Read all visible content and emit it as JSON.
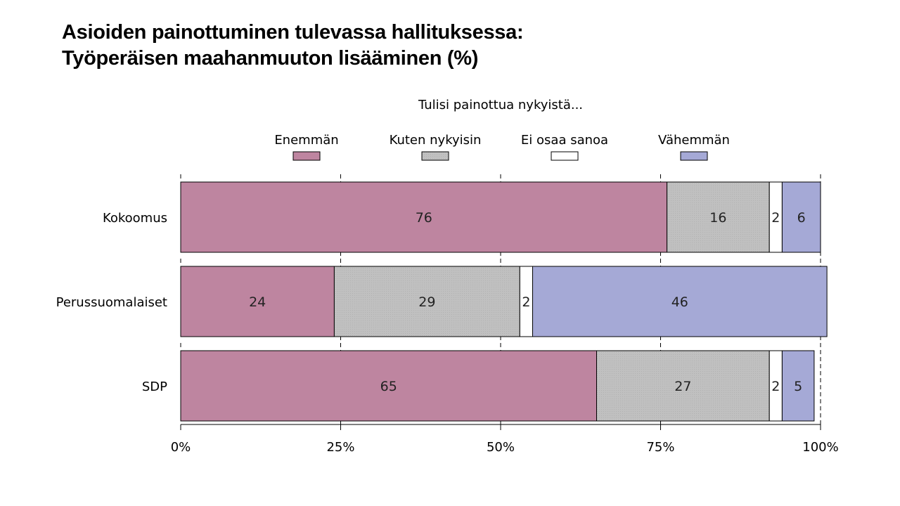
{
  "title_line1": "Asioiden painottuminen tulevassa hallituksessa:",
  "title_line2": "Työperäisen maahanmuuton lisääminen (%)",
  "chart_data": {
    "type": "bar",
    "orientation": "horizontal",
    "stacked": true,
    "legend_title": "Tulisi painottua nykyistä...",
    "legend_position": "top",
    "categories": [
      "Kokoomus",
      "Perussuomalaiset",
      "SDP"
    ],
    "series": [
      {
        "name": "Enemmän",
        "color": "#be85a0",
        "values": [
          76,
          24,
          65
        ]
      },
      {
        "name": "Kuten nykyisin",
        "color": "#c0c0c0",
        "values": [
          16,
          29,
          27
        ]
      },
      {
        "name": "Ei osaa sanoa",
        "color": "#ffffff",
        "values": [
          2,
          2,
          2
        ]
      },
      {
        "name": "Vähemmän",
        "color": "#a5a9d6",
        "values": [
          6,
          46,
          5
        ]
      }
    ],
    "xlim": [
      0,
      100
    ],
    "x_ticks": [
      "0%",
      "25%",
      "50%",
      "75%",
      "100%"
    ],
    "grid": "dashed vertical"
  }
}
